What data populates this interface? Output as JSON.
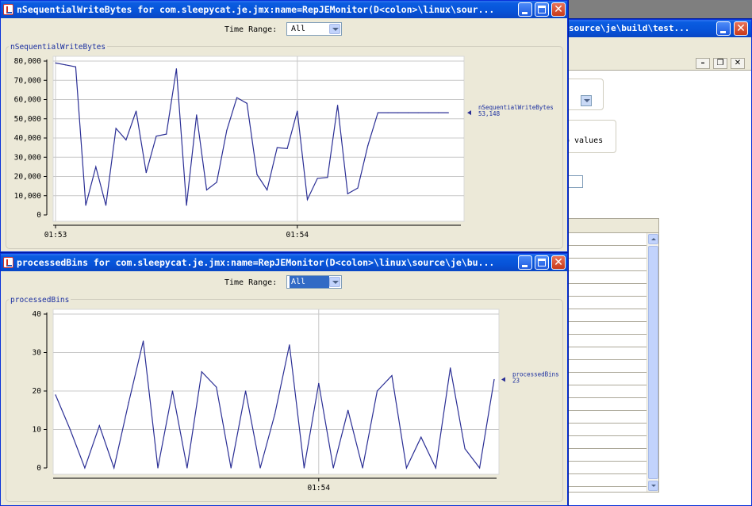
{
  "back_window": {
    "title": "source\\je\\build\\test...",
    "label_fragment": "o values"
  },
  "chart_windows": [
    {
      "title": "nSequentialWriteBytes for com.sleepycat.je.jmx:name=RepJEMonitor(D<colon>\\linux\\sour...",
      "time_range_label": "Time Range:",
      "time_range_value": "All",
      "time_range_focused": false,
      "plot_title": "nSequentialWriteBytes",
      "legend_name": "nSequentialWriteBytes",
      "legend_value": "53,148",
      "line_color": "#2b2f95"
    },
    {
      "title": "processedBins for com.sleepycat.je.jmx:name=RepJEMonitor(D<colon>\\linux\\source\\je\\bu...",
      "time_range_label": "Time Range:",
      "time_range_value": "All",
      "time_range_focused": true,
      "plot_title": "processedBins",
      "legend_name": "processedBins",
      "legend_value": "23",
      "line_color": "#2b2f95"
    }
  ],
  "chart_data": [
    {
      "type": "line",
      "title": "nSequentialWriteBytes",
      "ylim": [
        0,
        80000
      ],
      "yticks": [
        0,
        10000,
        20000,
        30000,
        40000,
        50000,
        60000,
        70000,
        80000
      ],
      "ytick_labels": [
        "0",
        "10,000",
        "20,000",
        "30,000",
        "40,000",
        "50,000",
        "60,000",
        "70,000",
        "80,000"
      ],
      "xlim": [
        0,
        40
      ],
      "xticks": [
        {
          "x": 0,
          "label": "01:53"
        },
        {
          "x": 24,
          "label": "01:54"
        }
      ],
      "series": [
        {
          "name": "nSequentialWriteBytes",
          "x": [
            0,
            1,
            2,
            3,
            4,
            5,
            6,
            7,
            8,
            9,
            10,
            11,
            12,
            13,
            14,
            15,
            16,
            17,
            18,
            19,
            20,
            21,
            22,
            23,
            24,
            25,
            26,
            27,
            28,
            29,
            30,
            31,
            32,
            33,
            34,
            35,
            36,
            37,
            38,
            39
          ],
          "values": [
            79000,
            78000,
            77000,
            5000,
            25000,
            5000,
            45000,
            39000,
            54000,
            22000,
            41000,
            42000,
            76000,
            5000,
            52000,
            13000,
            17000,
            44000,
            61000,
            58000,
            21000,
            13000,
            35000,
            34500,
            54000,
            8000,
            19000,
            19500,
            57000,
            11000,
            14000,
            36000,
            53148,
            53148,
            53148,
            53148,
            53148,
            53148,
            53148,
            53148
          ]
        }
      ]
    },
    {
      "type": "line",
      "title": "processedBins",
      "ylim": [
        0,
        40
      ],
      "yticks": [
        0,
        10,
        20,
        30,
        40
      ],
      "ytick_labels": [
        "0",
        "10",
        "20",
        "30",
        "40"
      ],
      "xlim": [
        0,
        30
      ],
      "xticks": [
        {
          "x": 18,
          "label": "01:54"
        }
      ],
      "series": [
        {
          "name": "processedBins",
          "x": [
            0,
            1,
            2,
            3,
            4,
            5,
            6,
            7,
            8,
            9,
            10,
            11,
            12,
            13,
            14,
            15,
            16,
            17,
            18,
            19,
            20,
            21,
            22,
            23,
            24,
            25,
            26,
            27,
            28,
            29,
            30
          ],
          "values": [
            19,
            10,
            0,
            11,
            0,
            17,
            33,
            0,
            20,
            0,
            25,
            21,
            0,
            20,
            0,
            14,
            32,
            0,
            22,
            0,
            15,
            0,
            20,
            24,
            0,
            8,
            0,
            26,
            5,
            0,
            23
          ]
        }
      ]
    }
  ]
}
